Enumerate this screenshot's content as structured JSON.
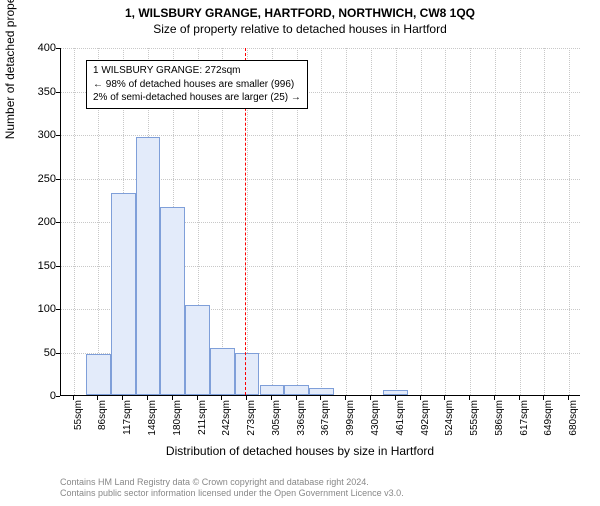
{
  "chart": {
    "type": "histogram",
    "title_line1": "1, WILSBURY GRANGE, HARTFORD, NORTHWICH, CW8 1QQ",
    "title_line2": "Size of property relative to detached houses in Hartford",
    "x_axis_label": "Distribution of detached houses by size in Hartford",
    "y_axis_label": "Number of detached properties",
    "background_color": "#ffffff",
    "grid_color": "#c8c8c8",
    "axis_color": "#000000",
    "bar_fill": "#e3ebfa",
    "bar_stroke": "#7f9fd9",
    "reference_line_color": "#ff0000",
    "reference_line_x": 272,
    "x_domain": [
      39,
      696
    ],
    "y_domain": [
      0,
      400
    ],
    "ytick_step": 50,
    "bin_width": 31.3,
    "bins": [
      {
        "start": 39.4,
        "count": 0
      },
      {
        "start": 70.7,
        "count": 47
      },
      {
        "start": 102,
        "count": 232
      },
      {
        "start": 133.3,
        "count": 297
      },
      {
        "start": 164.6,
        "count": 216
      },
      {
        "start": 195.9,
        "count": 103
      },
      {
        "start": 227.2,
        "count": 54
      },
      {
        "start": 258.5,
        "count": 48
      },
      {
        "start": 289.8,
        "count": 11
      },
      {
        "start": 321.1,
        "count": 11
      },
      {
        "start": 352.4,
        "count": 8
      },
      {
        "start": 383.7,
        "count": 0
      },
      {
        "start": 415,
        "count": 0
      },
      {
        "start": 446.3,
        "count": 6
      },
      {
        "start": 477.6,
        "count": 0
      },
      {
        "start": 508.9,
        "count": 0
      },
      {
        "start": 540.2,
        "count": 0
      },
      {
        "start": 571.5,
        "count": 0
      },
      {
        "start": 602.8,
        "count": 0
      },
      {
        "start": 634.1,
        "count": 0
      },
      {
        "start": 665.4,
        "count": 0
      }
    ],
    "xtick_labels": [
      "55sqm",
      "86sqm",
      "117sqm",
      "148sqm",
      "180sqm",
      "211sqm",
      "242sqm",
      "273sqm",
      "305sqm",
      "336sqm",
      "367sqm",
      "399sqm",
      "430sqm",
      "461sqm",
      "492sqm",
      "524sqm",
      "555sqm",
      "586sqm",
      "617sqm",
      "649sqm",
      "680sqm"
    ],
    "yticks": [
      0,
      50,
      100,
      150,
      200,
      250,
      300,
      350,
      400
    ],
    "annotation": {
      "line1": "1 WILSBURY GRANGE: 272sqm",
      "line2": "← 98% of detached houses are smaller (996)",
      "line3": "2% of semi-detached houses are larger (25) →"
    },
    "footer_line1": "Contains HM Land Registry data © Crown copyright and database right 2024.",
    "footer_line2": "Contains public sector information licensed under the Open Government Licence v3.0.",
    "title_fontsize": 12,
    "axis_label_fontsize": 12,
    "tick_fontsize": 10,
    "annotation_fontsize": 10,
    "footer_fontsize": 9
  }
}
